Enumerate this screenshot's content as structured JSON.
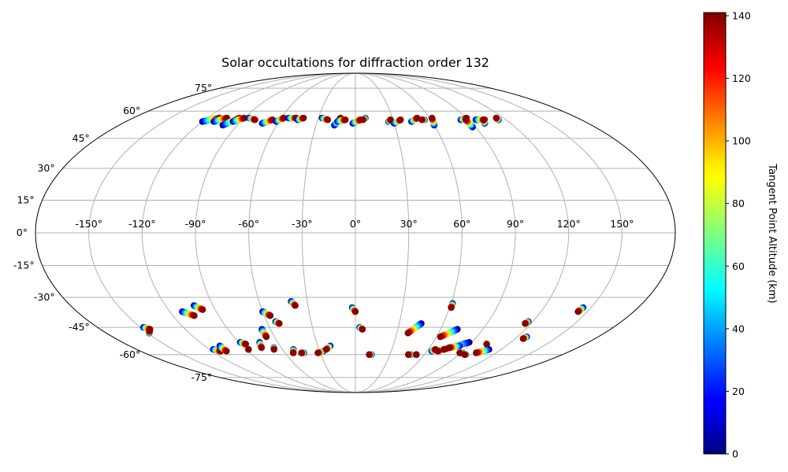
{
  "chart_data": {
    "type": "scatter",
    "projection": "mollweide",
    "title": "Solar occultations for diffraction order 132",
    "x_tick_labels": [
      "-150°",
      "-120°",
      "-90°",
      "-60°",
      "-30°",
      "0°",
      "30°",
      "60°",
      "90°",
      "120°",
      "150°"
    ],
    "x_tick_values": [
      -150,
      -120,
      -90,
      -60,
      -30,
      0,
      30,
      60,
      90,
      120,
      150
    ],
    "y_tick_labels": [
      "-75°",
      "-60°",
      "-45°",
      "-30°",
      "-15°",
      "0°",
      "15°",
      "30°",
      "45°",
      "60°",
      "75°"
    ],
    "y_tick_values": [
      -75,
      -60,
      -45,
      -30,
      -15,
      0,
      15,
      30,
      45,
      60,
      75
    ],
    "grid": true,
    "colormap": "jet",
    "colorbar": {
      "label": "Tangent Point Altitude (km)",
      "min": 0,
      "max": 141,
      "tick_labels": [
        "0",
        "20",
        "40",
        "60",
        "80",
        "100",
        "120",
        "140"
      ],
      "tick_values": [
        0,
        20,
        40,
        60,
        80,
        100,
        120,
        140
      ]
    },
    "altitude_range_km": [
      0,
      140
    ],
    "tracks": [
      {
        "lon_start": -120,
        "lat_start": 54,
        "lon_end": -110,
        "lat_end": 56
      },
      {
        "lon_start": -111,
        "lat_start": 54,
        "lon_end": -104,
        "lat_end": 56
      },
      {
        "lon_start": -101,
        "lat_start": 52,
        "lon_end": -94,
        "lat_end": 56
      },
      {
        "lon_start": -96,
        "lat_start": 54,
        "lon_end": -90,
        "lat_end": 56
      },
      {
        "lon_start": -86,
        "lat_start": 56,
        "lon_end": -80,
        "lat_end": 55
      },
      {
        "lon_start": -72,
        "lat_start": 53,
        "lon_end": -66,
        "lat_end": 55
      },
      {
        "lon_start": -62,
        "lat_start": 54,
        "lon_end": -58,
        "lat_end": 56
      },
      {
        "lon_start": -54,
        "lat_start": 56,
        "lon_end": -48,
        "lat_end": 56
      },
      {
        "lon_start": -46,
        "lat_start": 55,
        "lon_end": -42,
        "lat_end": 56
      },
      {
        "lon_start": -27,
        "lat_start": 56,
        "lon_end": -22,
        "lat_end": 55
      },
      {
        "lon_start": -16,
        "lat_start": 52,
        "lon_end": -12,
        "lat_end": 56
      },
      {
        "lon_start": -14,
        "lat_start": 54,
        "lon_end": -8,
        "lat_end": 55
      },
      {
        "lon_start": -2,
        "lat_start": 53,
        "lon_end": 4,
        "lat_end": 55
      },
      {
        "lon_start": 8,
        "lat_start": 56,
        "lon_end": 6,
        "lat_end": 55
      },
      {
        "lon_start": 26,
        "lat_start": 54,
        "lon_end": 28,
        "lat_end": 55
      },
      {
        "lon_start": 30,
        "lat_start": 53,
        "lon_end": 36,
        "lat_end": 55
      },
      {
        "lon_start": 44,
        "lat_start": 54,
        "lon_end": 50,
        "lat_end": 56
      },
      {
        "lon_start": 55,
        "lat_start": 55,
        "lon_end": 53,
        "lat_end": 55
      },
      {
        "lon_start": 60,
        "lat_start": 52,
        "lon_end": 62,
        "lat_end": 56
      },
      {
        "lon_start": 84,
        "lat_start": 55,
        "lon_end": 90,
        "lat_end": 56
      },
      {
        "lon_start": 88,
        "lat_start": 51,
        "lon_end": 88,
        "lat_end": 55
      },
      {
        "lon_start": 96,
        "lat_start": 55,
        "lon_end": 103,
        "lat_end": 55
      },
      {
        "lon_start": 100,
        "lat_start": 53,
        "lon_end": 102,
        "lat_end": 55
      },
      {
        "lon_start": 114,
        "lat_start": 55,
        "lon_end": 114,
        "lat_end": 56
      },
      {
        "lon_start": -148,
        "lat_start": -45,
        "lon_end": -145,
        "lat_end": -46
      },
      {
        "lon_start": -149,
        "lat_start": -48,
        "lon_end": -147,
        "lat_end": -47
      },
      {
        "lon_start": -112,
        "lat_start": -37,
        "lon_end": -106,
        "lat_end": -39
      },
      {
        "lon_start": -102,
        "lat_start": -34,
        "lon_end": -98,
        "lat_end": -36
      },
      {
        "lon_start": -89,
        "lat_start": -53,
        "lon_end": -86,
        "lat_end": -54
      },
      {
        "lon_start": -117,
        "lat_start": -57,
        "lon_end": -113,
        "lat_end": -58
      },
      {
        "lon_start": -108,
        "lat_start": -55,
        "lon_end": -108,
        "lat_end": -58
      },
      {
        "lon_start": -88,
        "lat_start": -57,
        "lon_end": -88,
        "lat_end": -57
      },
      {
        "lon_start": -74,
        "lat_start": -53,
        "lon_end": -76,
        "lat_end": -56
      },
      {
        "lon_start": -66,
        "lat_start": -46,
        "lon_end": -66,
        "lat_end": -50
      },
      {
        "lon_start": -66,
        "lat_start": -56,
        "lon_end": -67,
        "lat_end": -57
      },
      {
        "lon_start": -60,
        "lat_start": -37,
        "lon_end": -56,
        "lat_end": -39
      },
      {
        "lon_start": -54,
        "lat_start": -42,
        "lon_end": -52,
        "lat_end": -43
      },
      {
        "lon_start": -51,
        "lat_start": -57,
        "lon_end": -53,
        "lat_end": -59
      },
      {
        "lon_start": -44,
        "lat_start": -59,
        "lon_end": -46,
        "lat_end": -59
      },
      {
        "lon_start": -40,
        "lat_start": -32,
        "lon_end": -38,
        "lat_end": -34
      },
      {
        "lon_start": -27,
        "lat_start": -58,
        "lon_end": -32,
        "lat_end": -59
      },
      {
        "lon_start": -20,
        "lat_start": -55,
        "lon_end": -24,
        "lat_end": -57
      },
      {
        "lon_start": -2,
        "lat_start": -35,
        "lon_end": 0,
        "lat_end": -37
      },
      {
        "lon_start": 3,
        "lat_start": -45,
        "lon_end": 5,
        "lat_end": -46
      },
      {
        "lon_start": 14,
        "lat_start": -60,
        "lon_end": 12,
        "lat_end": -60
      },
      {
        "lon_start": 45,
        "lat_start": -43,
        "lon_end": 38,
        "lat_end": -48
      },
      {
        "lon_start": 48,
        "lat_start": -60,
        "lon_end": 46,
        "lat_end": -60
      },
      {
        "lon_start": 61,
        "lat_start": -33,
        "lon_end": 61,
        "lat_end": -35
      },
      {
        "lon_start": 53,
        "lat_start": -60,
        "lon_end": 53,
        "lat_end": -60
      },
      {
        "lon_start": 72,
        "lat_start": -46,
        "lon_end": 63,
        "lat_end": -50
      },
      {
        "lon_start": 64,
        "lat_start": -58,
        "lon_end": 66,
        "lat_end": -57
      },
      {
        "lon_start": 73,
        "lat_start": -57,
        "lon_end": 69,
        "lat_end": -58
      },
      {
        "lon_start": 88,
        "lat_start": -53,
        "lon_end": 73,
        "lat_end": -57
      },
      {
        "lon_start": 83,
        "lat_start": -55,
        "lon_end": 76,
        "lat_end": -56
      },
      {
        "lon_start": 91,
        "lat_start": -59,
        "lon_end": 89,
        "lat_end": -59
      },
      {
        "lon_start": 96,
        "lat_start": -60,
        "lon_end": 95,
        "lat_end": -60
      },
      {
        "lon_start": 103,
        "lat_start": -54,
        "lon_end": 103,
        "lat_end": -54
      },
      {
        "lon_start": 110,
        "lat_start": -57,
        "lon_end": 103,
        "lat_end": -59
      },
      {
        "lon_start": 117,
        "lat_start": -42,
        "lon_end": 116,
        "lat_end": -43
      },
      {
        "lon_start": 127,
        "lat_start": -50,
        "lon_end": 126,
        "lat_end": -51
      },
      {
        "lon_start": 145,
        "lat_start": -35,
        "lon_end": 144,
        "lat_end": -37
      }
    ]
  }
}
